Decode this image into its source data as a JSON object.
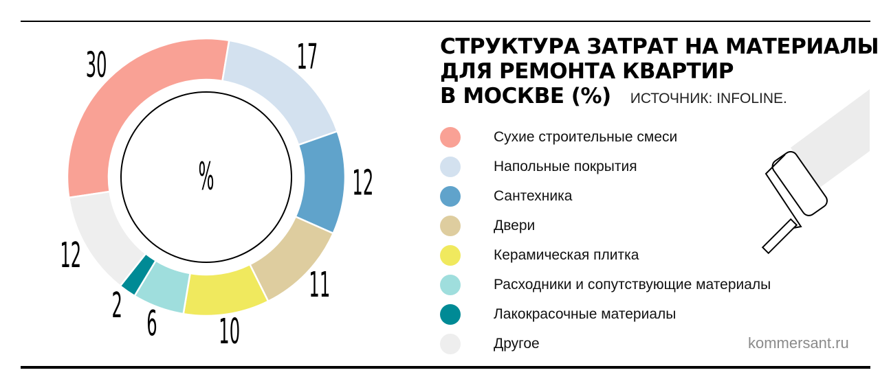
{
  "title_lines": [
    "СТРУКТУРА ЗАТРАТ НА МАТЕРИАЛЫ",
    "ДЛЯ РЕМОНТА КВАРТИР",
    "В МОСКВЕ (%)"
  ],
  "source": "ИСТОЧНИК: INFOLINE.",
  "brand": "kommersant.ru",
  "center_label": "%",
  "chart_data": {
    "type": "pie",
    "unit": "%",
    "title": "СТРУКТУРА ЗАТРАТ НА МАТЕРИАЛЫ ДЛЯ РЕМОНТА КВАРТИР В МОСКВЕ (%)",
    "legend_placement": "right",
    "slices": [
      {
        "label": "Сухие строительные смеси",
        "value": 30,
        "color": "#F9A195"
      },
      {
        "label": "Напольные покрытия",
        "value": 17,
        "color": "#D3E1EF"
      },
      {
        "label": "Сантехника",
        "value": 12,
        "color": "#60A3CB"
      },
      {
        "label": "Двери",
        "value": 11,
        "color": "#DECD9F"
      },
      {
        "label": "Керамическая плитка",
        "value": 10,
        "color": "#F0E95E"
      },
      {
        "label": "Расходники и сопутствующие материалы",
        "value": 6,
        "color": "#9FDEDD"
      },
      {
        "label": "Лакокрасочные материалы",
        "value": 2,
        "color": "#008A95"
      },
      {
        "label": "Другое",
        "value": 12,
        "color": "#EEEEEE"
      }
    ]
  }
}
